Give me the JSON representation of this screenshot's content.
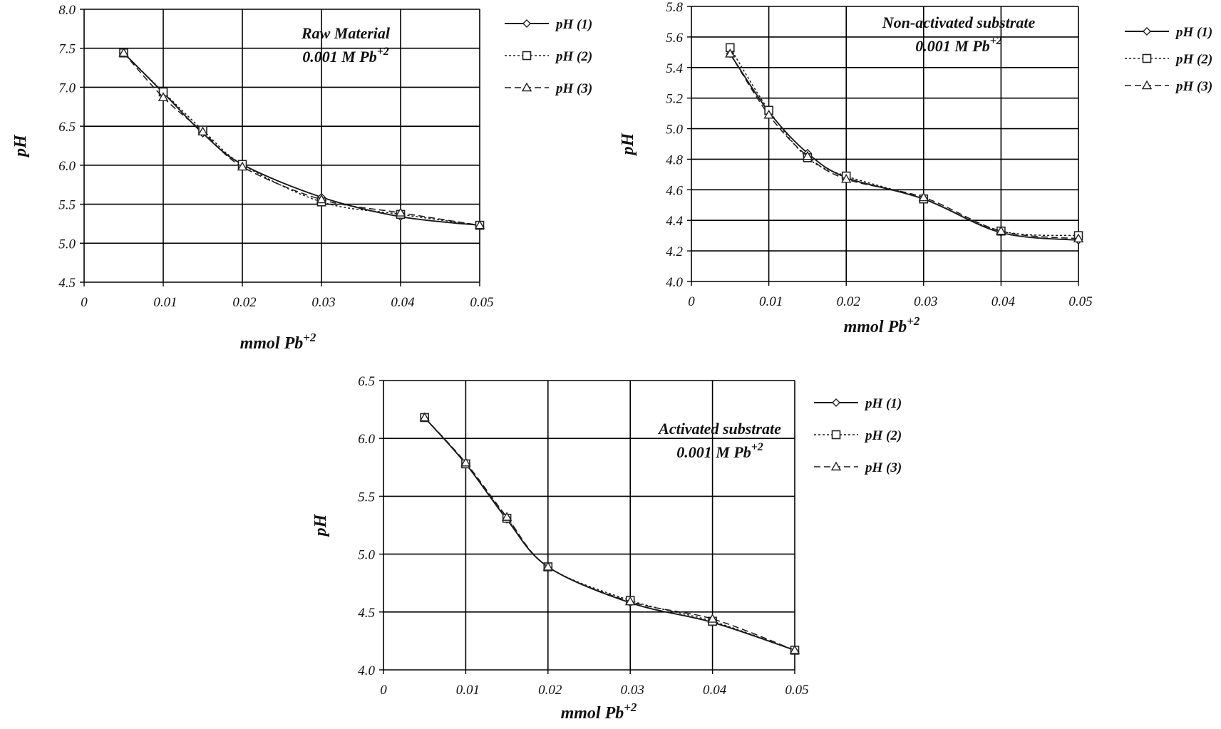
{
  "chart_data": [
    {
      "type": "line",
      "xlabel": "mmol Pb",
      "xlabel_sup": "+2",
      "ylabel": "pH",
      "xlim": [
        0,
        0.05
      ],
      "ylim": [
        4.5,
        8.0
      ],
      "xticks": [
        "0",
        "0.01",
        "0.02",
        "0.03",
        "0.04",
        "0.05"
      ],
      "yticks": [
        "4.5",
        "5.0",
        "5.5",
        "6.0",
        "6.5",
        "7.0",
        "7.5",
        "8.0"
      ],
      "grid": true,
      "legend_position": "outside-right",
      "annotation": {
        "line1": "Raw Material",
        "line2": "0.001 M Pb",
        "line2_sup": "+2"
      },
      "x": [
        0.005,
        0.01,
        0.015,
        0.02,
        0.03,
        0.04,
        0.05
      ],
      "series": [
        {
          "name": "pH (1)",
          "values": [
            7.44,
            6.93,
            6.41,
            6.01,
            5.59,
            5.34,
            5.23
          ],
          "marker": "diamond",
          "dash": ""
        },
        {
          "name": "pH (2)",
          "values": [
            7.44,
            6.94,
            6.45,
            6.01,
            5.53,
            5.37,
            5.23
          ],
          "marker": "square",
          "dash": "3,3"
        },
        {
          "name": "pH (3)",
          "values": [
            7.44,
            6.87,
            6.43,
            5.98,
            5.56,
            5.39,
            5.23
          ],
          "marker": "triangle",
          "dash": "9,5"
        }
      ]
    },
    {
      "type": "line",
      "xlabel": "mmol Pb",
      "xlabel_sup": "+2",
      "ylabel": "pH",
      "xlim": [
        0,
        0.05
      ],
      "ylim": [
        4.0,
        5.8
      ],
      "xticks": [
        "0",
        "0.01",
        "0.02",
        "0.03",
        "0.04",
        "0.05"
      ],
      "yticks": [
        "4.0",
        "4.2",
        "4.4",
        "4.6",
        "4.8",
        "5.0",
        "5.2",
        "5.4",
        "5.6",
        "5.8"
      ],
      "grid": true,
      "legend_position": "outside-right",
      "annotation": {
        "line1": "Non-activated substrate",
        "line2": "0.001 M Pb",
        "line2_sup": "+2"
      },
      "x": [
        0.005,
        0.01,
        0.015,
        0.02,
        0.03,
        0.04,
        0.05
      ],
      "series": [
        {
          "name": "pH (1)",
          "values": [
            5.49,
            5.11,
            4.84,
            4.68,
            4.54,
            4.32,
            4.27
          ],
          "marker": "diamond",
          "dash": ""
        },
        {
          "name": "pH (2)",
          "values": [
            5.53,
            5.12,
            4.81,
            4.69,
            4.54,
            4.33,
            4.3
          ],
          "marker": "square",
          "dash": "3,3"
        },
        {
          "name": "pH (3)",
          "values": [
            5.49,
            5.09,
            4.82,
            4.67,
            4.55,
            4.33,
            4.28
          ],
          "marker": "triangle",
          "dash": "9,5"
        }
      ]
    },
    {
      "type": "line",
      "xlabel": "mmol Pb",
      "xlabel_sup": "+2",
      "ylabel": "pH",
      "xlim": [
        0,
        0.05
      ],
      "ylim": [
        4.0,
        6.5
      ],
      "xticks": [
        "0",
        "0.01",
        "0.02",
        "0.03",
        "0.04",
        "0.05"
      ],
      "yticks": [
        "4.0",
        "4.5",
        "5.0",
        "5.5",
        "6.0",
        "6.5"
      ],
      "grid": true,
      "legend_position": "outside-right",
      "annotation": {
        "line1": "Activated substrate",
        "line2": "0.001 M Pb",
        "line2_sup": "+2"
      },
      "x": [
        0.005,
        0.01,
        0.015,
        0.02,
        0.03,
        0.04,
        0.05
      ],
      "series": [
        {
          "name": "pH (1)",
          "values": [
            6.18,
            5.78,
            5.3,
            4.89,
            4.58,
            4.41,
            4.17
          ],
          "marker": "diamond",
          "dash": ""
        },
        {
          "name": "pH (2)",
          "values": [
            6.18,
            5.78,
            5.31,
            4.89,
            4.6,
            4.42,
            4.17
          ],
          "marker": "square",
          "dash": "3,3"
        },
        {
          "name": "pH (3)",
          "values": [
            6.18,
            5.79,
            5.32,
            4.89,
            4.59,
            4.44,
            4.17
          ],
          "marker": "triangle",
          "dash": "9,5"
        }
      ]
    }
  ]
}
